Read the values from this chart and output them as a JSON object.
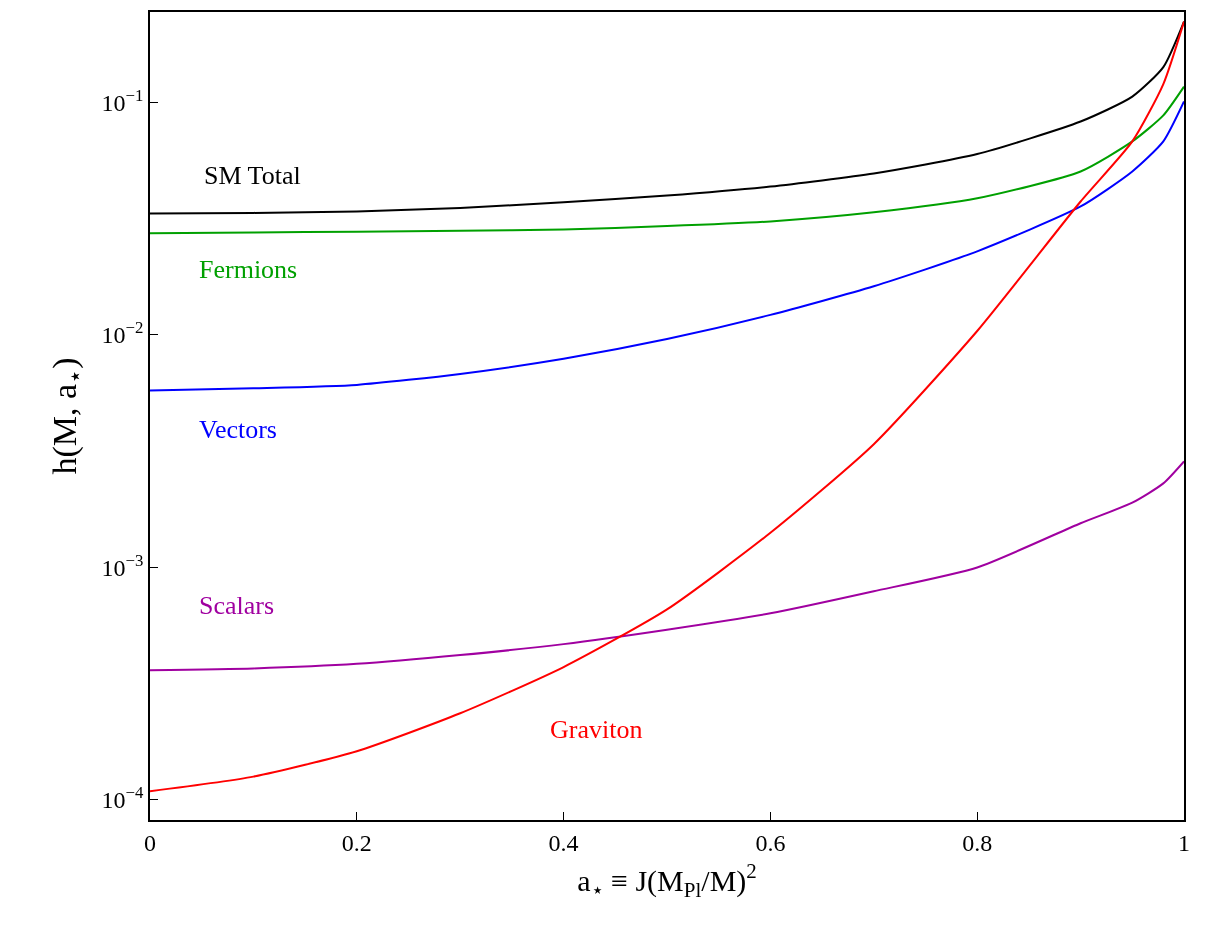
{
  "chart_data": {
    "type": "line",
    "xlabel": "a$_{⋆}$ ≡ J(M$_{Pl}$/M)$^{2}$",
    "ylabel": "h(M, a$_{⋆}$)",
    "log": "y",
    "grid": false,
    "legend": false,
    "marker": "none",
    "line_style": "solid",
    "x": [
      0,
      0.1,
      0.2,
      0.3,
      0.4,
      0.5,
      0.6,
      0.7,
      0.8,
      0.9,
      0.95,
      0.98,
      1.0
    ],
    "xlim": [
      0,
      1
    ],
    "xticks": [
      0,
      0.2,
      0.4,
      0.6,
      0.8,
      1
    ],
    "ylim": [
      8.2e-05,
      0.245
    ],
    "yticks": [
      {
        "value": 0.0001,
        "label": "10$^{−4}$"
      },
      {
        "value": 0.001,
        "label": "10$^{−3}$"
      },
      {
        "value": 0.01,
        "label": "10$^{−2}$"
      },
      {
        "value": 0.1,
        "label": "10$^{−1}$"
      }
    ],
    "series": [
      {
        "name": "SM Total",
        "color": "#000000",
        "values": [
          0.0333,
          0.0335,
          0.034,
          0.0352,
          0.0372,
          0.0398,
          0.0435,
          0.0495,
          0.06,
          0.0828,
          0.106,
          0.142,
          0.223
        ]
      },
      {
        "name": "Fermions",
        "color": "#00a000",
        "values": [
          0.0274,
          0.0276,
          0.0278,
          0.0281,
          0.0284,
          0.0294,
          0.0308,
          0.0337,
          0.0387,
          0.0505,
          0.068,
          0.088,
          0.117
        ]
      },
      {
        "name": "Vectors",
        "color": "#0000ff",
        "values": [
          0.00577,
          0.0059,
          0.0061,
          0.0068,
          0.0079,
          0.0096,
          0.0122,
          0.0162,
          0.0229,
          0.0357,
          0.0505,
          0.068,
          0.101
        ]
      },
      {
        "name": "Scalars",
        "color": "#a000a0",
        "values": [
          0.000361,
          0.000368,
          0.000385,
          0.00042,
          0.000468,
          0.00054,
          0.000635,
          0.00079,
          0.001,
          0.00155,
          0.0019,
          0.0023,
          0.00286
        ]
      },
      {
        "name": "Graviton",
        "color": "#ff0000",
        "values": [
          0.000109,
          0.000126,
          0.000162,
          0.000236,
          0.000373,
          0.00066,
          0.00141,
          0.00339,
          0.0104,
          0.0375,
          0.068,
          0.12,
          0.223
        ]
      }
    ]
  }
}
